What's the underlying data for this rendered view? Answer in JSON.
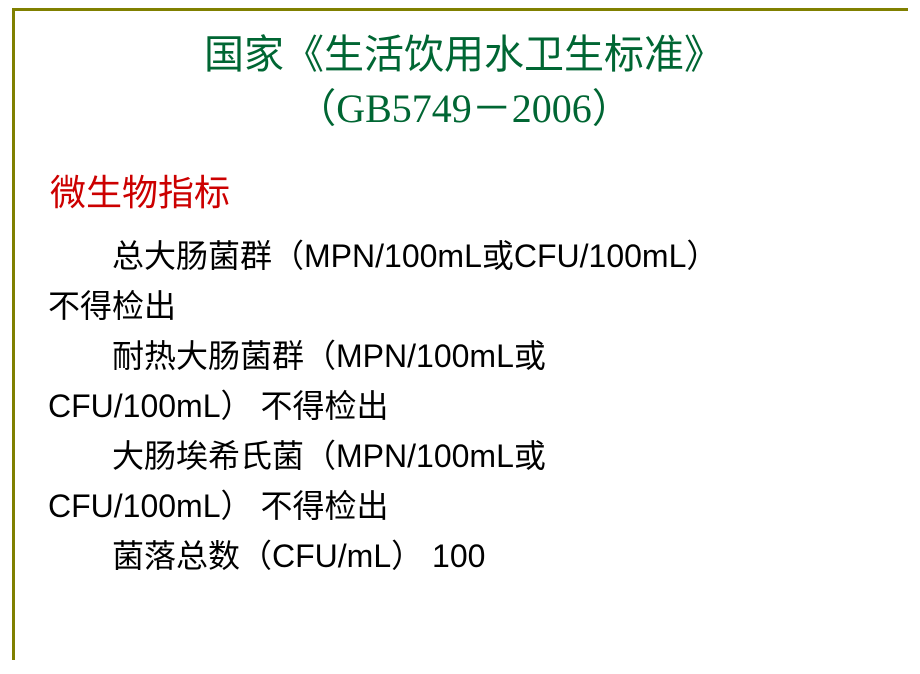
{
  "title": {
    "line1": "国家《生活饮用水卫生标准》",
    "line2": "（GB5749－2006）"
  },
  "section_heading": "微生物指标",
  "items": [
    {
      "line1_prefix": "总大肠菌群（",
      "line1_latin": "MPN/100mL",
      "line1_mid": "或",
      "line1_latin2": "CFU/100mL",
      "line1_suffix": "）",
      "line2": "不得检出"
    },
    {
      "line1_prefix": "耐热大肠菌群（",
      "line1_latin": "MPN/100mL",
      "line1_mid": "或",
      "line2_latin": "CFU/100mL",
      "line2_suffix": "） 不得检出"
    },
    {
      "line1_prefix": "大肠埃希氏菌（",
      "line1_latin": "MPN/100mL",
      "line1_mid": "或",
      "line2_latin": "CFU/100mL",
      "line2_suffix": "） 不得检出"
    },
    {
      "line1_prefix": "菌落总数（",
      "line1_latin": "CFU/mL",
      "line1_suffix": "）",
      "line1_value": " 100"
    }
  ],
  "colors": {
    "title_color": "#006633",
    "heading_color": "#cc0000",
    "body_color": "#000000",
    "border_color": "#808000",
    "background": "#ffffff"
  },
  "typography": {
    "title_fontsize": 40,
    "heading_fontsize": 36,
    "body_fontsize": 32,
    "cjk_font": "SimSun",
    "latin_font": "Arial"
  }
}
